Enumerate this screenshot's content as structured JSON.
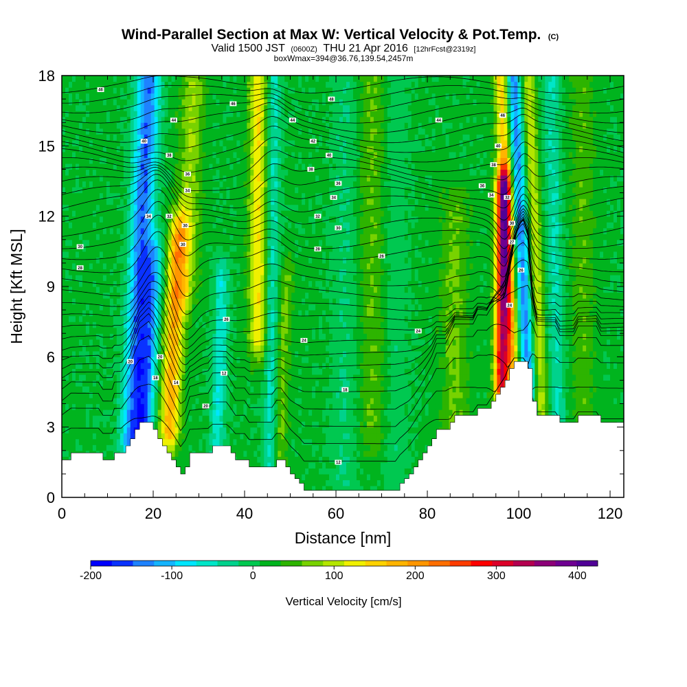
{
  "chart_data": {
    "type": "heatmap",
    "title": "Wind-Parallel Section at Max W: Vertical Velocity & Pot.Temp.",
    "title_mark": "(C)",
    "subtitle": {
      "valid": "Valid 1500 JST",
      "utc": "(0600Z)",
      "date": "THU 21 Apr 2016",
      "forecast": "[12hrFcst@2319z]"
    },
    "boxline": "boxWmax=394@36.76,139.54,2457m",
    "xlabel": "Distance [nm]",
    "ylabel": "Height [Kft MSL]",
    "xlim": [
      0,
      123
    ],
    "ylim": [
      0,
      18
    ],
    "xticks": [
      0,
      20,
      40,
      60,
      80,
      100,
      120
    ],
    "yticks": [
      0,
      3,
      6,
      9,
      12,
      15,
      18
    ],
    "colorbar": {
      "label": "Vertical Velocity [cm/s]",
      "ticks": [
        -200,
        -100,
        0,
        100,
        200,
        300,
        400
      ],
      "range": [
        -200,
        425
      ],
      "colors": [
        "#0000ff",
        "#0a32ff",
        "#1e82ff",
        "#14b4ff",
        "#00e6ff",
        "#00e6c8",
        "#00d28c",
        "#00c850",
        "#00b41e",
        "#2db400",
        "#78d200",
        "#b4e600",
        "#f0f000",
        "#ffd200",
        "#ffb400",
        "#ff9600",
        "#ff6e00",
        "#ff3c00",
        "#ff0000",
        "#dc0028",
        "#b40050",
        "#8c0078",
        "#6e0091",
        "#500096"
      ]
    },
    "background_value": 15,
    "features": [
      {
        "x": 17,
        "y_min": 2.5,
        "y_max": 18,
        "amp": -160,
        "width": 2.6,
        "tilt": 0.22
      },
      {
        "x": 20,
        "y_min": 3,
        "y_max": 10,
        "amp": -110,
        "width": 2.0,
        "tilt": 0.3
      },
      {
        "x": 25,
        "y_min": 3,
        "y_max": 11,
        "amp": 165,
        "width": 2.2,
        "tilt": 0.25
      },
      {
        "x": 27,
        "y_min": 9,
        "y_max": 18,
        "amp": 70,
        "width": 2.5,
        "tilt": 0.2
      },
      {
        "x": 35,
        "y_min": 1.5,
        "y_max": 9,
        "amp": -80,
        "width": 1.6,
        "tilt": 0.15
      },
      {
        "x": 43,
        "y_min": 7,
        "y_max": 18,
        "amp": 120,
        "width": 2.0,
        "tilt": 0.0
      },
      {
        "x": 46,
        "y_min": 1.5,
        "y_max": 18,
        "amp": -70,
        "width": 1.6,
        "tilt": 0.05
      },
      {
        "x": 49,
        "y_min": 1.5,
        "y_max": 9,
        "amp": 55,
        "width": 1.6,
        "tilt": 0.2
      },
      {
        "x": 62,
        "y_min": 0.5,
        "y_max": 18,
        "amp": -30,
        "width": 3.0,
        "tilt": 0.0
      },
      {
        "x": 68,
        "y_min": 3,
        "y_max": 18,
        "amp": 45,
        "width": 3.0,
        "tilt": 0.0
      },
      {
        "x": 73,
        "y_min": 1,
        "y_max": 18,
        "amp": -25,
        "width": 3.0,
        "tilt": 0.0
      },
      {
        "x": 86,
        "y_min": 3,
        "y_max": 12,
        "amp": 50,
        "width": 3.0,
        "tilt": 0.0
      },
      {
        "x": 96.5,
        "y_min": 5,
        "y_max": 13,
        "amp": 300,
        "width": 1.6,
        "tilt": 0.05
      },
      {
        "x": 98,
        "y_min": 6,
        "y_max": 18,
        "amp": 140,
        "width": 1.6,
        "tilt": -0.2
      },
      {
        "x": 101,
        "y_min": 5,
        "y_max": 18,
        "amp": -150,
        "width": 1.6,
        "tilt": -0.25
      },
      {
        "x": 104,
        "y_min": 4,
        "y_max": 18,
        "amp": 90,
        "width": 1.4,
        "tilt": -0.2
      },
      {
        "x": 108,
        "y_min": 4,
        "y_max": 18,
        "amp": -60,
        "width": 1.8,
        "tilt": -0.1
      },
      {
        "x": 114,
        "y_min": 4,
        "y_max": 18,
        "amp": 40,
        "width": 2.5,
        "tilt": 0.0
      }
    ],
    "terrain_kft": [
      [
        0,
        1.6
      ],
      [
        2,
        1.9
      ],
      [
        4,
        1.9
      ],
      [
        6,
        1.9
      ],
      [
        8,
        1.9
      ],
      [
        9,
        1.6
      ],
      [
        11,
        1.6
      ],
      [
        11.5,
        1.9
      ],
      [
        13,
        1.9
      ],
      [
        14,
        2.2
      ],
      [
        15,
        2.5
      ],
      [
        16,
        2.9
      ],
      [
        17,
        3.2
      ],
      [
        19,
        3.2
      ],
      [
        20,
        2.9
      ],
      [
        21,
        2.5
      ],
      [
        22,
        2.2
      ],
      [
        23,
        1.9
      ],
      [
        24,
        1.6
      ],
      [
        25,
        1.3
      ],
      [
        26,
        1.0
      ],
      [
        27,
        1.3
      ],
      [
        28,
        1.9
      ],
      [
        30,
        1.9
      ],
      [
        32,
        1.9
      ],
      [
        33,
        2.2
      ],
      [
        34,
        2.2
      ],
      [
        36,
        2.2
      ],
      [
        37,
        1.9
      ],
      [
        38,
        1.6
      ],
      [
        40,
        1.6
      ],
      [
        41,
        1.3
      ],
      [
        43,
        1.3
      ],
      [
        45,
        1.3
      ],
      [
        46,
        1.3
      ],
      [
        47,
        1.6
      ],
      [
        48,
        1.6
      ],
      [
        49,
        1.3
      ],
      [
        50,
        1.0
      ],
      [
        51,
        0.8
      ],
      [
        52,
        0.6
      ],
      [
        53,
        0.3
      ],
      [
        55,
        0.3
      ],
      [
        60,
        0.3
      ],
      [
        65,
        0.3
      ],
      [
        70,
        0.3
      ],
      [
        73,
        0.3
      ],
      [
        74,
        0.6
      ],
      [
        75,
        0.8
      ],
      [
        76,
        1.0
      ],
      [
        77,
        1.3
      ],
      [
        78,
        1.6
      ],
      [
        79,
        1.9
      ],
      [
        80,
        2.2
      ],
      [
        81,
        2.5
      ],
      [
        82,
        2.9
      ],
      [
        84,
        2.9
      ],
      [
        85,
        3.2
      ],
      [
        86,
        3.5
      ],
      [
        88,
        3.5
      ],
      [
        90,
        3.5
      ],
      [
        91,
        3.8
      ],
      [
        93,
        3.8
      ],
      [
        94,
        4.1
      ],
      [
        95,
        4.4
      ],
      [
        96,
        4.7
      ],
      [
        97,
        5.0
      ],
      [
        98,
        5.5
      ],
      [
        99,
        5.8
      ],
      [
        101,
        5.8
      ],
      [
        102,
        5.5
      ],
      [
        103,
        4.1
      ],
      [
        104,
        3.5
      ],
      [
        106,
        3.5
      ],
      [
        108,
        3.5
      ],
      [
        109,
        3.2
      ],
      [
        110,
        3.2
      ],
      [
        112,
        3.2
      ],
      [
        113,
        3.5
      ],
      [
        115,
        3.5
      ],
      [
        117,
        3.5
      ],
      [
        118,
        3.2
      ],
      [
        120,
        3.2
      ],
      [
        123,
        3.2
      ]
    ],
    "isentrope_levels": [
      1.3,
      2.1,
      2.9,
      3.7,
      4.5,
      5.1,
      5.6,
      6.1,
      6.6,
      7.1,
      7.6,
      8.1,
      8.7,
      9.3,
      9.9,
      10.5,
      11.0,
      11.5,
      12.0,
      12.4,
      12.8,
      13.2,
      13.6,
      14.0,
      14.4,
      14.8,
      15.2,
      15.6,
      16.0,
      16.4,
      16.8,
      17.2,
      17.6
    ],
    "contour_labels": [
      {
        "x": 8.5,
        "y": 17.4,
        "text": "46"
      },
      {
        "x": 24.5,
        "y": 16.1,
        "text": "44"
      },
      {
        "x": 18,
        "y": 15.2,
        "text": "40"
      },
      {
        "x": 23.5,
        "y": 14.6,
        "text": "38"
      },
      {
        "x": 27.5,
        "y": 13.8,
        "text": "36"
      },
      {
        "x": 27.5,
        "y": 13.1,
        "text": "34"
      },
      {
        "x": 19,
        "y": 12.0,
        "text": "34"
      },
      {
        "x": 23.5,
        "y": 12.0,
        "text": "32"
      },
      {
        "x": 27,
        "y": 11.6,
        "text": "30"
      },
      {
        "x": 26.5,
        "y": 10.8,
        "text": "30"
      },
      {
        "x": 4,
        "y": 10.7,
        "text": "30"
      },
      {
        "x": 4,
        "y": 9.8,
        "text": "28"
      },
      {
        "x": 37.5,
        "y": 16.8,
        "text": "46"
      },
      {
        "x": 59,
        "y": 17.0,
        "text": "48"
      },
      {
        "x": 50.5,
        "y": 16.1,
        "text": "44"
      },
      {
        "x": 55,
        "y": 15.2,
        "text": "42"
      },
      {
        "x": 58.5,
        "y": 14.6,
        "text": "40"
      },
      {
        "x": 54.5,
        "y": 14.0,
        "text": "38"
      },
      {
        "x": 60.5,
        "y": 13.4,
        "text": "36"
      },
      {
        "x": 59.5,
        "y": 12.8,
        "text": "34"
      },
      {
        "x": 56,
        "y": 12.0,
        "text": "32"
      },
      {
        "x": 60.5,
        "y": 11.5,
        "text": "30"
      },
      {
        "x": 56,
        "y": 10.6,
        "text": "28"
      },
      {
        "x": 70,
        "y": 10.3,
        "text": "26"
      },
      {
        "x": 36,
        "y": 7.6,
        "text": "26"
      },
      {
        "x": 53,
        "y": 6.7,
        "text": "24"
      },
      {
        "x": 78,
        "y": 7.1,
        "text": "24"
      },
      {
        "x": 15,
        "y": 5.8,
        "text": "20"
      },
      {
        "x": 21.5,
        "y": 6.0,
        "text": "20"
      },
      {
        "x": 20.5,
        "y": 5.1,
        "text": "18"
      },
      {
        "x": 25,
        "y": 4.9,
        "text": "14"
      },
      {
        "x": 35.5,
        "y": 5.3,
        "text": "12"
      },
      {
        "x": 31.5,
        "y": 3.9,
        "text": "20"
      },
      {
        "x": 62,
        "y": 4.6,
        "text": "18"
      },
      {
        "x": 60.5,
        "y": 1.5,
        "text": "12"
      },
      {
        "x": 82.5,
        "y": 16.1,
        "text": "44"
      },
      {
        "x": 96.5,
        "y": 16.3,
        "text": "46"
      },
      {
        "x": 95.5,
        "y": 15.0,
        "text": "40"
      },
      {
        "x": 94.5,
        "y": 14.2,
        "text": "38"
      },
      {
        "x": 92,
        "y": 13.3,
        "text": "36"
      },
      {
        "x": 94,
        "y": 12.9,
        "text": "34"
      },
      {
        "x": 97.5,
        "y": 12.8,
        "text": "32"
      },
      {
        "x": 98.5,
        "y": 11.7,
        "text": "30"
      },
      {
        "x": 98.5,
        "y": 10.9,
        "text": "27"
      },
      {
        "x": 100.5,
        "y": 9.7,
        "text": "26"
      },
      {
        "x": 98,
        "y": 8.2,
        "text": "24"
      }
    ]
  }
}
